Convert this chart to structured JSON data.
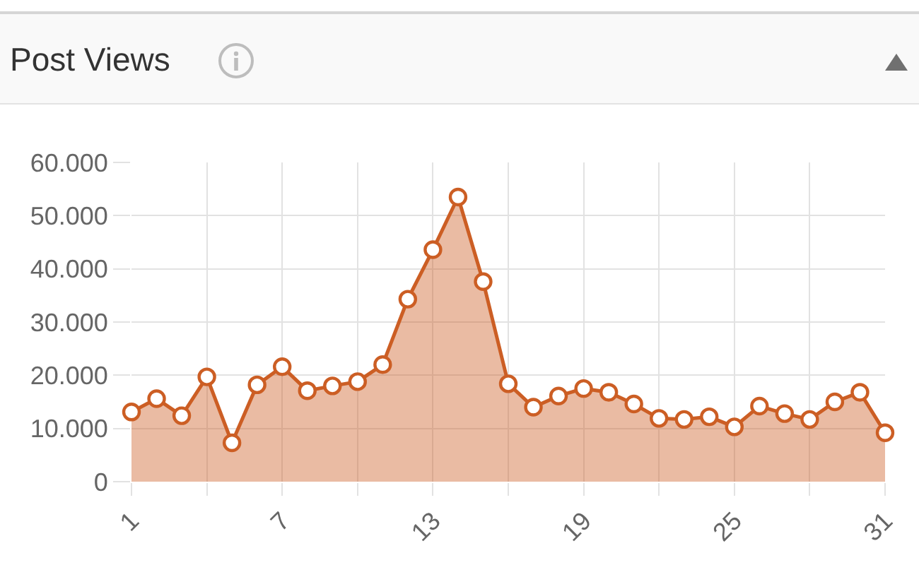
{
  "chart_data": {
    "type": "area",
    "title": "Post Views",
    "x": [
      1,
      2,
      3,
      4,
      5,
      6,
      7,
      8,
      9,
      10,
      11,
      12,
      13,
      14,
      15,
      16,
      17,
      18,
      19,
      20,
      21,
      22,
      23,
      24,
      25,
      26,
      27,
      28,
      29,
      30,
      31
    ],
    "values": [
      13100,
      15600,
      12400,
      19700,
      7300,
      18200,
      21600,
      17100,
      18000,
      18800,
      22000,
      34300,
      43600,
      53500,
      37600,
      18400,
      14000,
      16100,
      17500,
      16800,
      14600,
      11900,
      11700,
      12200,
      10300,
      14200,
      12800,
      11700,
      15000,
      16800,
      9200
    ],
    "color": "#cc5e24",
    "xlim": [
      1,
      31
    ],
    "xticks": [
      1,
      {
        "value": 4,
        "label": null
      },
      7,
      {
        "value": 10,
        "label": null
      },
      13,
      {
        "value": 16,
        "label": null
      },
      19,
      {
        "value": 22,
        "label": null
      },
      25,
      {
        "value": 28,
        "label": null
      },
      31
    ],
    "ylim": [
      0,
      60000
    ],
    "yticks": [
      0,
      {
        "value": 10000,
        "label": "10.000"
      },
      {
        "value": 20000,
        "label": "20.000"
      },
      {
        "value": 30000,
        "label": "30.000"
      },
      {
        "value": 40000,
        "label": "40.000"
      },
      {
        "value": 50000,
        "label": "50.000"
      },
      {
        "value": 60000,
        "label": "60.000"
      }
    ],
    "grid": true,
    "marker": "circle",
    "line_style": "solid"
  }
}
